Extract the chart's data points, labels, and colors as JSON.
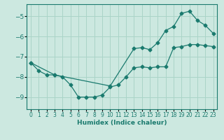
{
  "xlabel": "Humidex (Indice chaleur)",
  "ylabel": "",
  "bg_color": "#cce8e0",
  "line_color": "#1a7a6e",
  "grid_color": "#aad4c8",
  "xlim": [
    -0.5,
    23.5
  ],
  "ylim": [
    -9.6,
    -4.4
  ],
  "xticks": [
    0,
    1,
    2,
    3,
    4,
    5,
    6,
    7,
    8,
    9,
    10,
    11,
    12,
    13,
    14,
    15,
    16,
    17,
    18,
    19,
    20,
    21,
    22,
    23
  ],
  "yticks": [
    -9,
    -8,
    -7,
    -6,
    -5
  ],
  "line1_x": [
    0,
    1,
    2,
    3,
    4,
    5,
    6,
    7,
    8,
    9,
    10,
    11,
    12,
    13,
    14,
    15,
    16,
    17,
    18,
    19,
    20,
    21,
    22,
    23
  ],
  "line1_y": [
    -7.3,
    -7.7,
    -7.9,
    -7.9,
    -8.0,
    -8.4,
    -9.0,
    -9.0,
    -9.0,
    -8.9,
    -8.5,
    -8.4,
    -8.0,
    -7.55,
    -7.5,
    -7.55,
    -7.5,
    -7.5,
    -6.55,
    -6.5,
    -6.4,
    -6.4,
    -6.45,
    -6.5
  ],
  "line2_x": [
    0,
    3,
    10,
    13,
    14,
    15,
    16,
    17,
    18,
    19,
    20,
    21,
    22,
    23
  ],
  "line2_y": [
    -7.3,
    -7.9,
    -8.45,
    -6.6,
    -6.55,
    -6.65,
    -6.3,
    -5.7,
    -5.5,
    -4.85,
    -4.75,
    -5.2,
    -5.45,
    -5.85
  ]
}
